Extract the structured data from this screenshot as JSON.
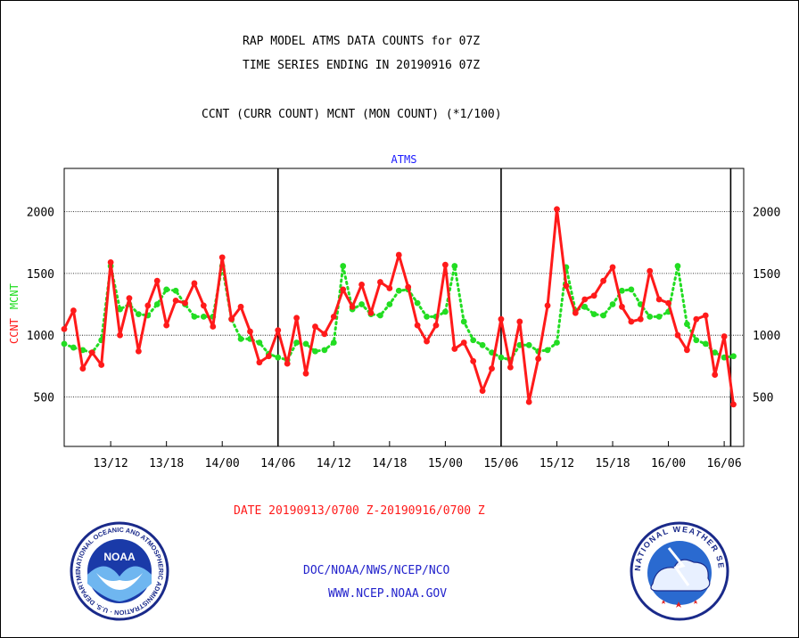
{
  "header": {
    "title_line1": "RAP MODEL ATMS DATA COUNTS for 07Z",
    "title_line2": "TIME SERIES ENDING IN 20190916 07Z",
    "subtitle": "CCNT (CURR COUNT) MCNT (MON COUNT) (*1/100)"
  },
  "footer": {
    "date_range": "DATE 20190913/0700 Z-20190916/0700 Z",
    "org_line": "DOC/NOAA/NWS/NCEP/NCO",
    "url_line": "WWW.NCEP.NOAA.GOV"
  },
  "logos": {
    "noaa_text": "NOAA",
    "noaa_ring_text": "NATIONAL OCEANIC AND ATMOSPHERIC ADMINISTRATION · U.S. DEPARTMENT OF COMMERCE ·",
    "nws_ring_text": "NATIONAL WEATHER SERVICE"
  },
  "colors": {
    "ccnt": "#ff1a1a",
    "mcnt": "#22dd22",
    "axis_title": "#1a1aff",
    "footer_blue": "#2222cc",
    "date_red": "#ff1a1a"
  },
  "chart_data": {
    "type": "line",
    "panel_title": "ATMS",
    "ylabel_left_parts": [
      "CCNT",
      "MCNT"
    ],
    "ylim": [
      100,
      2350
    ],
    "y_ticks": [
      500,
      1000,
      1500,
      2000
    ],
    "y_tick_labels": [
      "500",
      "1000",
      "1500",
      "2000"
    ],
    "x_tick_labels": [
      "13/12",
      "13/18",
      "14/00",
      "14/06",
      "14/12",
      "14/18",
      "15/00",
      "15/06",
      "15/12",
      "15/18",
      "16/00",
      "16/06"
    ],
    "x_tick_hours": [
      5,
      11,
      17,
      23,
      29,
      35,
      41,
      47,
      53,
      59,
      65,
      71
    ],
    "x_hours_range": [
      0,
      73.1
    ],
    "day_boundaries_hours": [
      23,
      47,
      71.7
    ],
    "grid": true,
    "series": [
      {
        "name": "CCNT",
        "values": [
          1050,
          1200,
          730,
          860,
          760,
          1590,
          1000,
          1300,
          870,
          1240,
          1440,
          1080,
          1280,
          1260,
          1420,
          1240,
          1070,
          1630,
          1130,
          1230,
          1030,
          780,
          830,
          1040,
          770,
          1140,
          690,
          1070,
          1010,
          1150,
          1370,
          1230,
          1410,
          1180,
          1430,
          1380,
          1650,
          1390,
          1080,
          950,
          1080,
          1570,
          890,
          940,
          790,
          550,
          730,
          1130,
          740,
          1110,
          460,
          810,
          1240,
          2020,
          1400,
          1180,
          1290,
          1320,
          1440,
          1550,
          1230,
          1110,
          1130,
          1520,
          1290,
          1260,
          1000,
          880,
          1130,
          1160,
          680,
          990,
          440
        ]
      },
      {
        "name": "MCNT",
        "values": [
          930,
          900,
          880,
          860,
          960,
          1560,
          1210,
          1250,
          1170,
          1160,
          1250,
          1370,
          1360,
          1250,
          1150,
          1150,
          1150,
          1560,
          1130,
          970,
          970,
          940,
          850,
          820,
          800,
          940,
          930,
          870,
          880,
          940,
          1560,
          1210,
          1250,
          1170,
          1160,
          1250,
          1360,
          1370,
          1260,
          1150,
          1150,
          1190,
          1560,
          1110,
          960,
          920,
          860,
          820,
          800,
          920,
          920,
          870,
          880,
          940,
          1550,
          1200,
          1230,
          1170,
          1160,
          1250,
          1360,
          1370,
          1250,
          1150,
          1150,
          1190,
          1560,
          1090,
          960,
          930,
          860,
          820,
          830
        ]
      }
    ]
  }
}
